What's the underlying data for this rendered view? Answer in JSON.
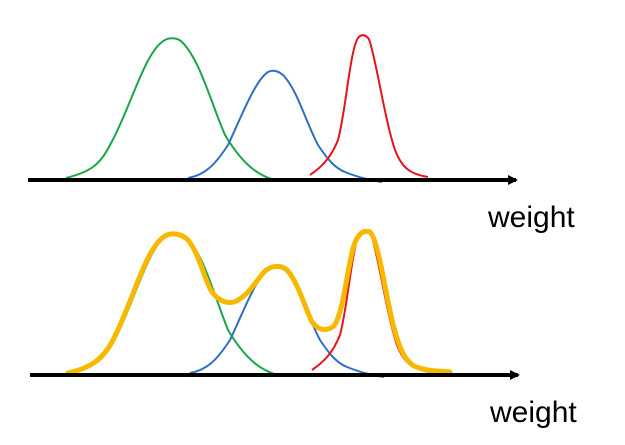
{
  "panels": [
    {
      "id": "top",
      "axis_label": "weight",
      "curves": [
        {
          "name": "green",
          "color": "#1aa64a"
        },
        {
          "name": "blue",
          "color": "#2e6fc4"
        },
        {
          "name": "red",
          "color": "#e8121c"
        }
      ],
      "has_mixture": false
    },
    {
      "id": "bottom",
      "axis_label": "weight",
      "curves": [
        {
          "name": "green",
          "color": "#1aa64a"
        },
        {
          "name": "blue",
          "color": "#2e6fc4"
        },
        {
          "name": "red",
          "color": "#e8121c"
        }
      ],
      "has_mixture": true,
      "mixture_color": "#f7b800"
    }
  ],
  "colors": {
    "axis": "#000000",
    "background": "#ffffff"
  }
}
